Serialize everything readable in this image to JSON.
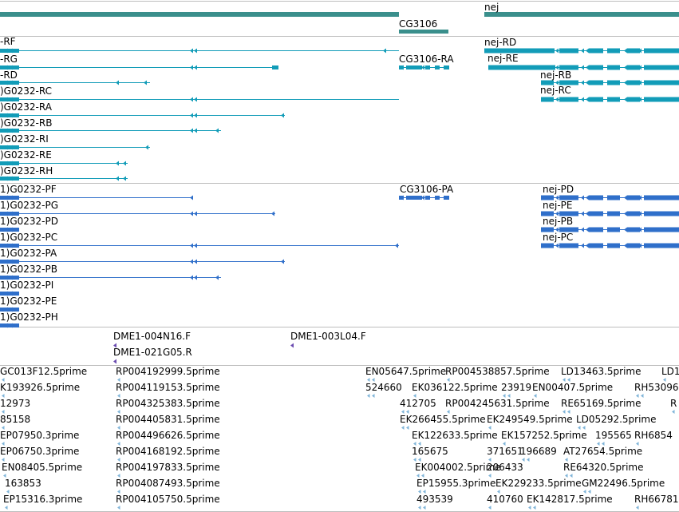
{
  "colors": {
    "gene_track": "#3a8f8c",
    "transcript_rna": "#129cb8",
    "transcript_protein": "#2f6fca",
    "clone": "#6a4bb0",
    "est": "#7fb4d8",
    "separator": "#bdbdbd",
    "background": "#ffffff"
  },
  "gene_track": {
    "genes": [
      {
        "id": "gene-left",
        "label": ""
      },
      {
        "id": "gene-cg3106",
        "label": "CG3106"
      },
      {
        "id": "gene-nej",
        "label": "nej"
      }
    ]
  },
  "rna_track": {
    "labels": [
      "-RF",
      "-RG",
      "-RD",
      ")G0232-RC",
      ")G0232-RA",
      ")G0232-RB",
      ")G0232-RI",
      ")G0232-RE",
      ")G0232-RH",
      "CG3106-RA",
      "nej-RD",
      "nej-RE",
      "nej-RB",
      "nej-RC"
    ]
  },
  "protein_track": {
    "labels": [
      "1)G0232-PF",
      "1)G0232-PG",
      "1)G0232-PD",
      "1)G0232-PC",
      "1)G0232-PA",
      "1)G0232-PB",
      "1)G0232-PI",
      "1)G0232-PE",
      "1)G0232-PH",
      "CG3106-PA",
      "nej-PD",
      "nej-PE",
      "nej-PB",
      "nej-PC"
    ]
  },
  "clone_track": {
    "labels": [
      "DME1-004N16.F",
      "DME1-021G05.R",
      "DME1-003L04.F"
    ]
  },
  "est_track": {
    "labels": [
      "GC013F12.5prime",
      "RP004192999.5prime",
      "EN05647.5prime",
      "RP004538857.5prime",
      "LD13463.5prime",
      "LD1",
      "K193926.5prime",
      "RP004119153.5prime",
      "524660",
      "EK036122.5prime",
      "23919",
      "EN00407.5prime",
      "RH53096",
      "12973",
      "RP004325383.5prime",
      "412705",
      "RP004245631.5prime",
      "RE65169.5prime",
      "R",
      "85158",
      "RP004405831.5prime",
      "EK266455.5prime",
      "EK249549.5prime",
      "LD05292.5prime",
      "EP07950.3prime",
      "RP004496626.5prime",
      "EK122633.5prime",
      "EK157252.5prime",
      "195565",
      "RH6854",
      "EP06750.3prime",
      "RP004168192.5prime",
      "165675",
      "371651",
      "196689",
      "AT27654.5prime",
      "EN08405.5prime",
      "RP004197833.5prime",
      "EK004002.5prime",
      "206433",
      "RE64320.5prime",
      "163853",
      "RP004087493.5prime",
      "EP15955.3prime",
      "EK229233.5prime",
      "GM22496.5prime",
      "EP15316.3prime",
      "RP004105750.5prime",
      "493539",
      "410760",
      "EK142817.5prime",
      "RH66781"
    ]
  }
}
